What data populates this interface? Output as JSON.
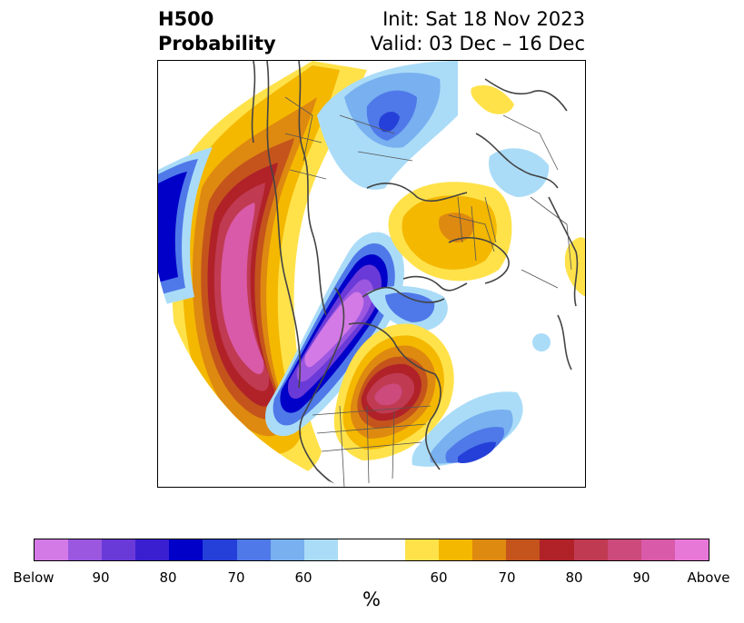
{
  "title": {
    "left_line1": "H500",
    "left_line2": "Probability",
    "right_line1": "Init: Sat 18 Nov 2023",
    "right_line2": "Valid: 03 Dec – 16 Dec"
  },
  "colorbar": {
    "unit": "%",
    "ticks": [
      "Below",
      "90",
      "80",
      "70",
      "60",
      "60",
      "70",
      "80",
      "90",
      "Above"
    ],
    "colors": [
      "#d37ae6",
      "#9b57e0",
      "#6a3ad8",
      "#3a1fd0",
      "#0000c8",
      "#2540d8",
      "#4f79e8",
      "#78b0f0",
      "#aadcf8",
      "#ffffff",
      "#ffe24a",
      "#f4b800",
      "#de8910",
      "#c4541c",
      "#b02228",
      "#c03a52",
      "#cc4a7c",
      "#d95aa8",
      "#e878d8"
    ]
  }
}
